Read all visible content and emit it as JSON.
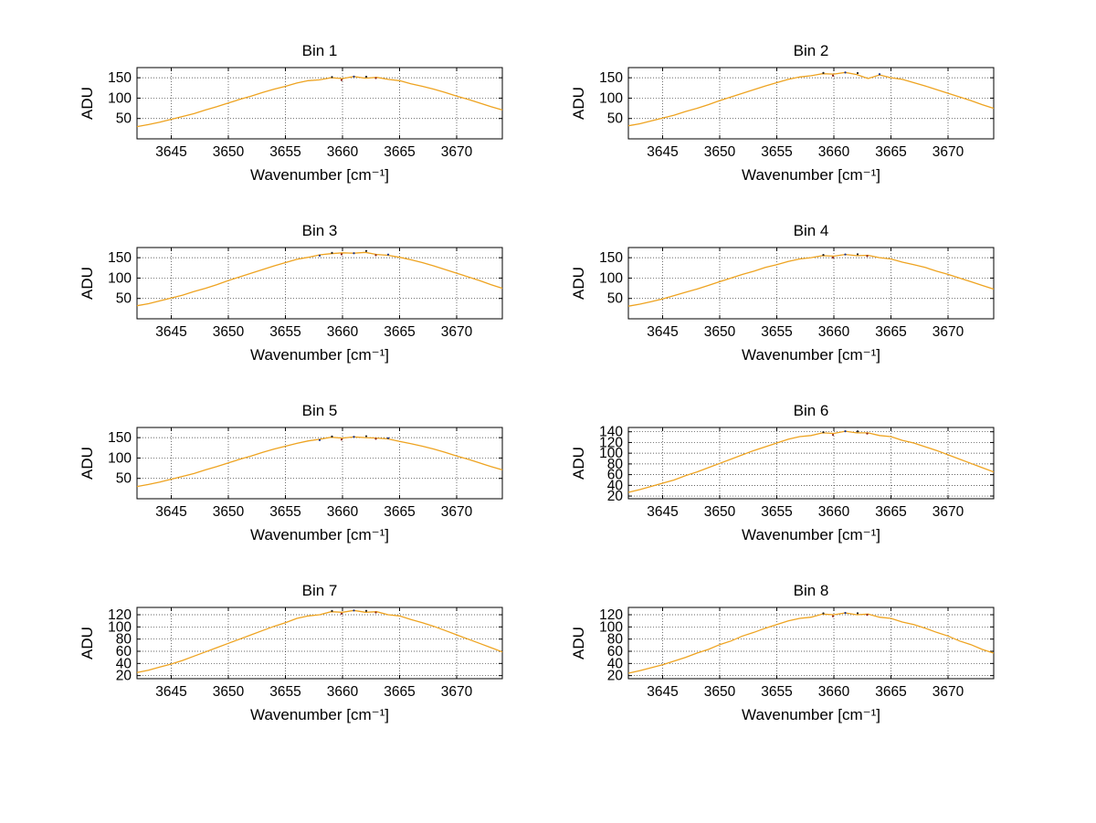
{
  "figure": {
    "background": "#ffffff"
  },
  "colors": {
    "line": "#eea320",
    "overlay": [
      "#8b2016",
      "#16308b",
      "#222222"
    ],
    "grid": "#000000",
    "axis": "#000000"
  },
  "chart_data": [
    {
      "type": "line",
      "title": "Bin 1",
      "xlabel": "Wavenumber [cm⁻¹]",
      "ylabel": "ADU",
      "xlim": [
        3642,
        3674
      ],
      "ylim": [
        0,
        175
      ],
      "grid": true,
      "legend": "none",
      "xticks": [
        3645,
        3650,
        3655,
        3660,
        3665,
        3670
      ],
      "yticks": [
        50,
        100,
        150
      ],
      "x": [
        3642,
        3643,
        3644,
        3645,
        3646,
        3647,
        3648,
        3649,
        3650,
        3651,
        3652,
        3653,
        3654,
        3655,
        3656,
        3657,
        3658,
        3659,
        3660,
        3661,
        3662,
        3663,
        3664,
        3665,
        3666,
        3667,
        3668,
        3669,
        3670,
        3671,
        3672,
        3673,
        3674
      ],
      "y": [
        30,
        35,
        41,
        48,
        55,
        62,
        71,
        79,
        88,
        97,
        105,
        114,
        122,
        129,
        137,
        143,
        145,
        150,
        148,
        153,
        149,
        151,
        146,
        143,
        135,
        129,
        122,
        114,
        105,
        97,
        88,
        79,
        71
      ]
    },
    {
      "type": "line",
      "title": "Bin 2",
      "xlabel": "Wavenumber [cm⁻¹]",
      "ylabel": "ADU",
      "xlim": [
        3642,
        3674
      ],
      "ylim": [
        0,
        175
      ],
      "grid": true,
      "legend": "none",
      "xticks": [
        3645,
        3650,
        3655,
        3660,
        3665,
        3670
      ],
      "yticks": [
        50,
        100,
        150
      ],
      "x": [
        3642,
        3643,
        3644,
        3645,
        3646,
        3647,
        3648,
        3649,
        3650,
        3651,
        3652,
        3653,
        3654,
        3655,
        3656,
        3657,
        3658,
        3659,
        3660,
        3661,
        3662,
        3663,
        3664,
        3665,
        3666,
        3667,
        3668,
        3669,
        3670,
        3671,
        3672,
        3673,
        3674
      ],
      "y": [
        32,
        37,
        44,
        51,
        58,
        67,
        75,
        84,
        94,
        103,
        112,
        121,
        130,
        138,
        146,
        152,
        155,
        160,
        159,
        163,
        158,
        148,
        157,
        150,
        146,
        138,
        130,
        121,
        112,
        103,
        94,
        84,
        75
      ]
    },
    {
      "type": "line",
      "title": "Bin 3",
      "xlabel": "Wavenumber [cm⁻¹]",
      "ylabel": "ADU",
      "xlim": [
        3642,
        3674
      ],
      "ylim": [
        0,
        175
      ],
      "grid": true,
      "legend": "none",
      "xticks": [
        3645,
        3650,
        3655,
        3660,
        3665,
        3670
      ],
      "yticks": [
        50,
        100,
        150
      ],
      "x": [
        3642,
        3643,
        3644,
        3645,
        3646,
        3647,
        3648,
        3649,
        3650,
        3651,
        3652,
        3653,
        3654,
        3655,
        3656,
        3657,
        3658,
        3659,
        3660,
        3661,
        3662,
        3663,
        3664,
        3665,
        3666,
        3667,
        3668,
        3669,
        3670,
        3671,
        3672,
        3673,
        3674
      ],
      "y": [
        32,
        37,
        44,
        51,
        58,
        67,
        75,
        84,
        94,
        103,
        112,
        121,
        130,
        138,
        146,
        151,
        157,
        160,
        162,
        161,
        163,
        158,
        156,
        151,
        145,
        138,
        130,
        121,
        112,
        103,
        94,
        84,
        75
      ]
    },
    {
      "type": "line",
      "title": "Bin 4",
      "xlabel": "Wavenumber [cm⁻¹]",
      "ylabel": "ADU",
      "xlim": [
        3642,
        3674
      ],
      "ylim": [
        0,
        175
      ],
      "grid": true,
      "legend": "none",
      "xticks": [
        3645,
        3650,
        3655,
        3660,
        3665,
        3670
      ],
      "yticks": [
        50,
        100,
        150
      ],
      "x": [
        3642,
        3643,
        3644,
        3645,
        3646,
        3647,
        3648,
        3649,
        3650,
        3651,
        3652,
        3653,
        3654,
        3655,
        3656,
        3657,
        3658,
        3659,
        3660,
        3661,
        3662,
        3663,
        3664,
        3665,
        3666,
        3667,
        3668,
        3669,
        3670,
        3671,
        3672,
        3673,
        3674
      ],
      "y": [
        31,
        36,
        42,
        49,
        57,
        65,
        73,
        82,
        91,
        100,
        109,
        117,
        126,
        133,
        141,
        147,
        150,
        155,
        154,
        158,
        155,
        156,
        150,
        147,
        139,
        133,
        126,
        117,
        109,
        100,
        91,
        82,
        73
      ]
    },
    {
      "type": "line",
      "title": "Bin 5",
      "xlabel": "Wavenumber [cm⁻¹]",
      "ylabel": "ADU",
      "xlim": [
        3642,
        3674
      ],
      "ylim": [
        0,
        175
      ],
      "grid": true,
      "legend": "none",
      "xticks": [
        3645,
        3650,
        3655,
        3660,
        3665,
        3670
      ],
      "yticks": [
        50,
        100,
        150
      ],
      "x": [
        3642,
        3643,
        3644,
        3645,
        3646,
        3647,
        3648,
        3649,
        3650,
        3651,
        3652,
        3653,
        3654,
        3655,
        3656,
        3657,
        3658,
        3659,
        3660,
        3661,
        3662,
        3663,
        3664,
        3665,
        3666,
        3667,
        3668,
        3669,
        3670,
        3671,
        3672,
        3673,
        3674
      ],
      "y": [
        30,
        35,
        41,
        48,
        55,
        62,
        71,
        79,
        88,
        97,
        105,
        114,
        122,
        129,
        136,
        142,
        146,
        151,
        149,
        152,
        150,
        149,
        147,
        141,
        135,
        129,
        122,
        114,
        105,
        97,
        88,
        79,
        71
      ]
    },
    {
      "type": "line",
      "title": "Bin 6",
      "xlabel": "Wavenumber [cm⁻¹]",
      "ylabel": "ADU",
      "xlim": [
        3642,
        3674
      ],
      "ylim": [
        15,
        148
      ],
      "grid": true,
      "legend": "none",
      "xticks": [
        3645,
        3650,
        3655,
        3660,
        3665,
        3670
      ],
      "yticks": [
        20,
        40,
        60,
        80,
        100,
        120,
        140
      ],
      "x": [
        3642,
        3643,
        3644,
        3645,
        3646,
        3647,
        3648,
        3649,
        3650,
        3651,
        3652,
        3653,
        3654,
        3655,
        3656,
        3657,
        3658,
        3659,
        3660,
        3661,
        3662,
        3663,
        3664,
        3665,
        3666,
        3667,
        3668,
        3669,
        3670,
        3671,
        3672,
        3673,
        3674
      ],
      "y": [
        27,
        32,
        38,
        44,
        50,
        58,
        65,
        73,
        81,
        89,
        97,
        105,
        112,
        119,
        126,
        131,
        133,
        138,
        137,
        141,
        138,
        138,
        133,
        131,
        124,
        119,
        112,
        105,
        97,
        89,
        81,
        73,
        65
      ]
    },
    {
      "type": "line",
      "title": "Bin 7",
      "xlabel": "Wavenumber [cm⁻¹]",
      "ylabel": "ADU",
      "xlim": [
        3642,
        3674
      ],
      "ylim": [
        15,
        132
      ],
      "grid": true,
      "legend": "none",
      "xticks": [
        3645,
        3650,
        3655,
        3660,
        3665,
        3670
      ],
      "yticks": [
        20,
        40,
        60,
        80,
        100,
        120
      ],
      "x": [
        3642,
        3643,
        3644,
        3645,
        3646,
        3647,
        3648,
        3649,
        3650,
        3651,
        3652,
        3653,
        3654,
        3655,
        3656,
        3657,
        3658,
        3659,
        3660,
        3661,
        3662,
        3663,
        3664,
        3665,
        3666,
        3667,
        3668,
        3669,
        3670,
        3671,
        3672,
        3673,
        3674
      ],
      "y": [
        25,
        29,
        34,
        39,
        45,
        52,
        59,
        66,
        73,
        80,
        87,
        94,
        101,
        107,
        114,
        118,
        120,
        125,
        124,
        127,
        124,
        125,
        120,
        118,
        112,
        107,
        101,
        94,
        87,
        80,
        73,
        66,
        59
      ]
    },
    {
      "type": "line",
      "title": "Bin 8",
      "xlabel": "Wavenumber [cm⁻¹]",
      "ylabel": "ADU",
      "xlim": [
        3642,
        3674
      ],
      "ylim": [
        15,
        132
      ],
      "grid": true,
      "legend": "none",
      "xticks": [
        3645,
        3650,
        3655,
        3660,
        3665,
        3670
      ],
      "yticks": [
        20,
        40,
        60,
        80,
        100,
        120
      ],
      "x": [
        3642,
        3643,
        3644,
        3645,
        3646,
        3647,
        3648,
        3649,
        3650,
        3651,
        3652,
        3653,
        3654,
        3655,
        3656,
        3657,
        3658,
        3659,
        3660,
        3661,
        3662,
        3663,
        3664,
        3665,
        3666,
        3667,
        3668,
        3669,
        3670,
        3671,
        3672,
        3673,
        3674
      ],
      "y": [
        24,
        28,
        33,
        38,
        44,
        50,
        57,
        63,
        71,
        77,
        85,
        91,
        98,
        104,
        110,
        114,
        116,
        121,
        120,
        123,
        120,
        121,
        116,
        114,
        108,
        104,
        98,
        91,
        85,
        77,
        71,
        63,
        57
      ]
    }
  ]
}
